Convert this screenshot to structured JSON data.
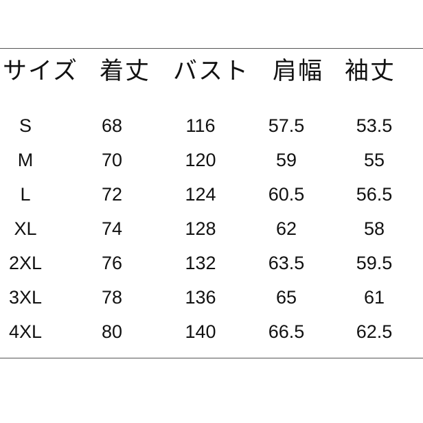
{
  "headers": [
    "サイズ",
    "着丈",
    "バスト",
    "肩幅",
    "袖丈"
  ],
  "rows": [
    [
      "S",
      "68",
      "116",
      "57.5",
      "53.5"
    ],
    [
      "M",
      "70",
      "120",
      "59",
      "55"
    ],
    [
      "L",
      "72",
      "124",
      "60.5",
      "56.5"
    ],
    [
      "XL",
      "74",
      "128",
      "62",
      "58"
    ],
    [
      "2XL",
      "76",
      "132",
      "63.5",
      "59.5"
    ],
    [
      "3XL",
      "78",
      "136",
      "65",
      "61"
    ],
    [
      "4XL",
      "80",
      "140",
      "66.5",
      "62.5"
    ]
  ]
}
